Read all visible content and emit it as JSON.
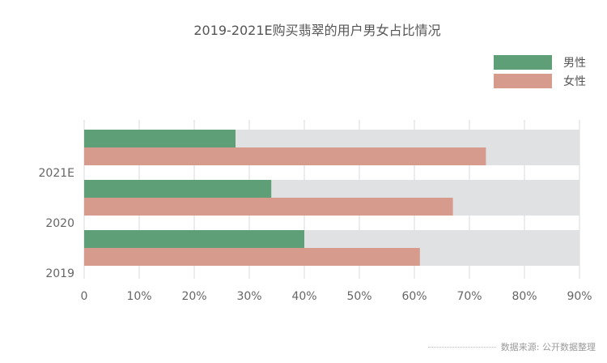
{
  "chart_data": {
    "type": "bar",
    "orientation": "horizontal",
    "title": "2019-2021E购买翡翠的用户男女占比情况",
    "categories": [
      "2021E",
      "2020",
      "2019"
    ],
    "series": [
      {
        "name": "男性",
        "color": "#5f9f78",
        "values": [
          27.5,
          34,
          40
        ]
      },
      {
        "name": "女性",
        "color": "#d79b8d",
        "values": [
          73,
          67,
          61
        ]
      }
    ],
    "background_bar_max": 90,
    "background_bar_color": "#dfe1e3",
    "xlim": [
      0,
      90
    ],
    "x_ticks": [
      "0",
      "10%",
      "20%",
      "30%",
      "40%",
      "50%",
      "60%",
      "70%",
      "80%",
      "90%"
    ],
    "grid": true,
    "legend_position": "top-right"
  },
  "footer": {
    "source": "数据来源: 公开数据整理"
  }
}
